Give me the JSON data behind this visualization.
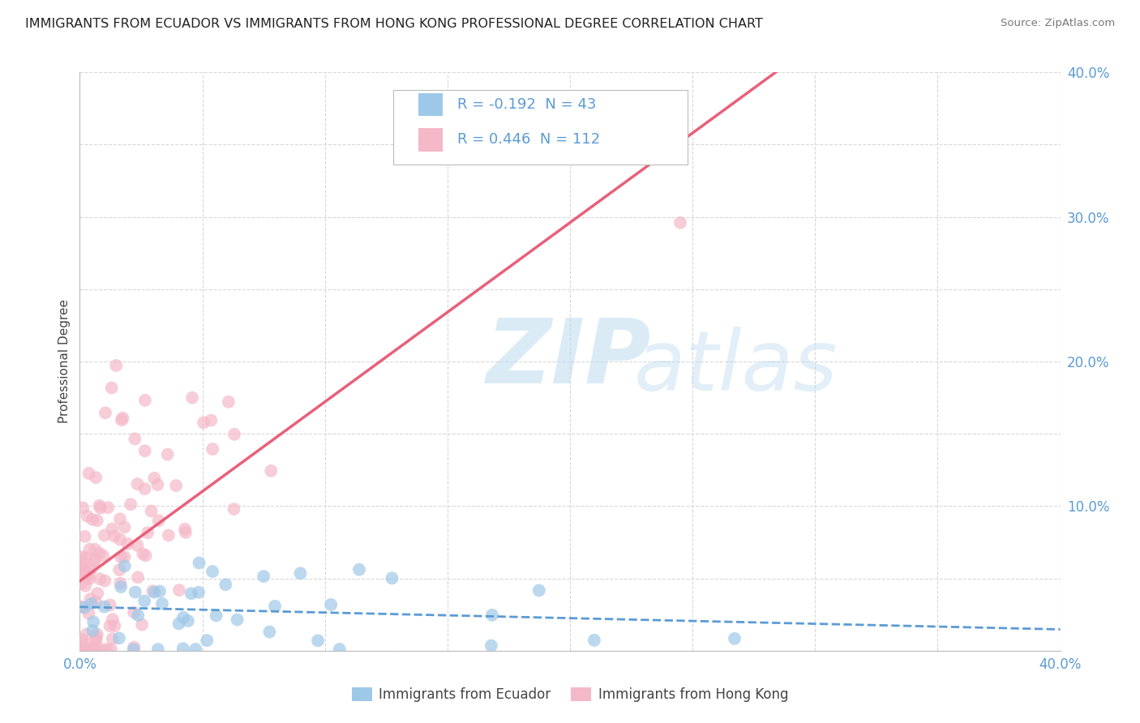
{
  "title": "IMMIGRANTS FROM ECUADOR VS IMMIGRANTS FROM HONG KONG PROFESSIONAL DEGREE CORRELATION CHART",
  "source": "Source: ZipAtlas.com",
  "ylabel": "Professional Degree",
  "xlim": [
    0.0,
    0.4
  ],
  "ylim": [
    0.0,
    0.4
  ],
  "xticks": [
    0.0,
    0.05,
    0.1,
    0.15,
    0.2,
    0.25,
    0.3,
    0.35,
    0.4
  ],
  "yticks": [
    0.0,
    0.05,
    0.1,
    0.15,
    0.2,
    0.25,
    0.3,
    0.35,
    0.4
  ],
  "ecuador_color": "#9ec8e8",
  "hk_color": "#f5b8c8",
  "ecuador_line_color": "#5b9bd5",
  "hk_line_color": "#e8607a",
  "R_ecuador": -0.192,
  "N_ecuador": 43,
  "R_hk": 0.446,
  "N_hk": 112,
  "watermark_zip": "ZIP",
  "watermark_atlas": "atlas",
  "background_color": "#ffffff",
  "grid_color": "#d8d8d8",
  "tick_color": "#5b9bd5",
  "label_color": "#444444",
  "title_fontsize": 11.5,
  "axis_fontsize": 12,
  "legend_fontsize": 13
}
